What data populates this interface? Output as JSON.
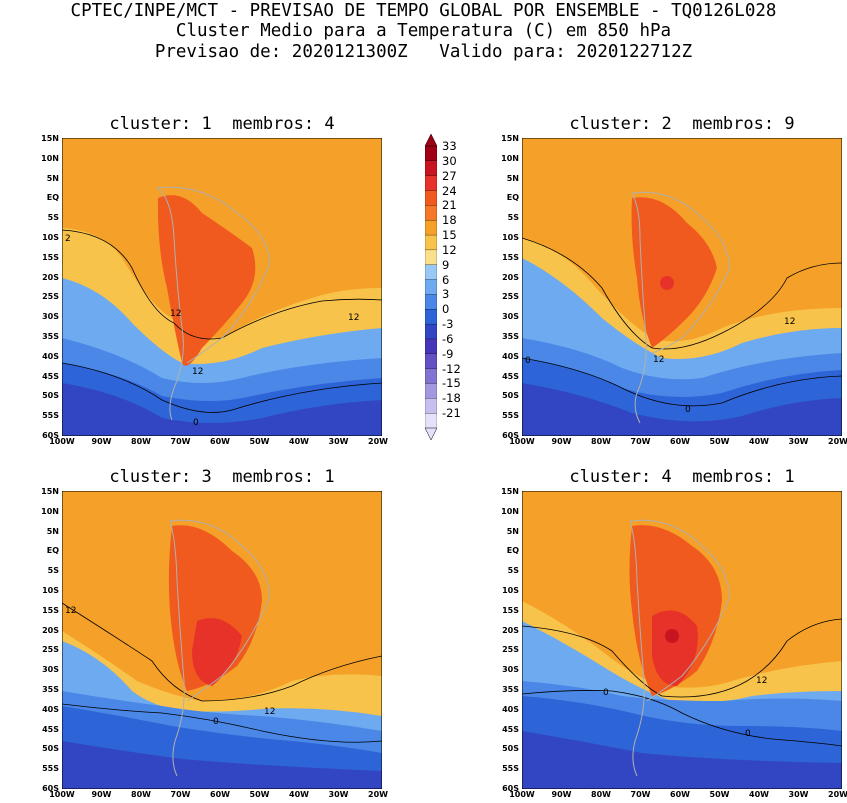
{
  "header": {
    "line1": "CPTEC/INPE/MCT - PREVISAO DE TEMPO GLOBAL POR ENSEMBLE - TQ0126L028",
    "line2": "Cluster Medio para a Temperatura (C) em 850 hPa",
    "line3": "Previsao de: 2020121300Z   Valido para: 2020122712Z"
  },
  "panels": [
    {
      "title": "cluster: 1  membros: 4",
      "contour_labels": [
        "2",
        "12",
        "12",
        "12",
        "0"
      ]
    },
    {
      "title": "cluster: 2  membros: 9",
      "contour_labels": [
        "12",
        "12",
        "0",
        "0"
      ]
    },
    {
      "title": "cluster: 3  membros: 1",
      "contour_labels": [
        "12",
        "12",
        "0"
      ]
    },
    {
      "title": "cluster: 4  membros: 1",
      "contour_labels": [
        "12",
        "0",
        "0"
      ]
    }
  ],
  "lat_labels": [
    "15N",
    "10N",
    "5N",
    "EQ",
    "5S",
    "10S",
    "15S",
    "20S",
    "25S",
    "30S",
    "35S",
    "40S",
    "45S",
    "50S",
    "55S",
    "60S"
  ],
  "lon_labels": [
    "100W",
    "90W",
    "80W",
    "70W",
    "60W",
    "50W",
    "40W",
    "30W",
    "20W"
  ],
  "colorbar": {
    "levels": [
      "33",
      "30",
      "27",
      "24",
      "21",
      "18",
      "15",
      "12",
      "9",
      "6",
      "3",
      "0",
      "-3",
      "-6",
      "-9",
      "-12",
      "-15",
      "-18",
      "-21"
    ],
    "colors": [
      "#a00014",
      "#c8141e",
      "#e63228",
      "#f05a1e",
      "#f5782a",
      "#f5a028",
      "#f8c34a",
      "#fae08c",
      "#98c8f5",
      "#6eaaf0",
      "#4b87e6",
      "#2d64d7",
      "#3246c3",
      "#4637b9",
      "#6450c3",
      "#8273d2",
      "#a596e1",
      "#c8bef0",
      "#e6e1fa"
    ]
  },
  "colors": {
    "hot": "#f05a1e",
    "warm": "#f5a028",
    "mild": "#f8c34a",
    "cool": "#6eaaf0",
    "cold": "#2d64d7",
    "colder": "#4637b9"
  }
}
